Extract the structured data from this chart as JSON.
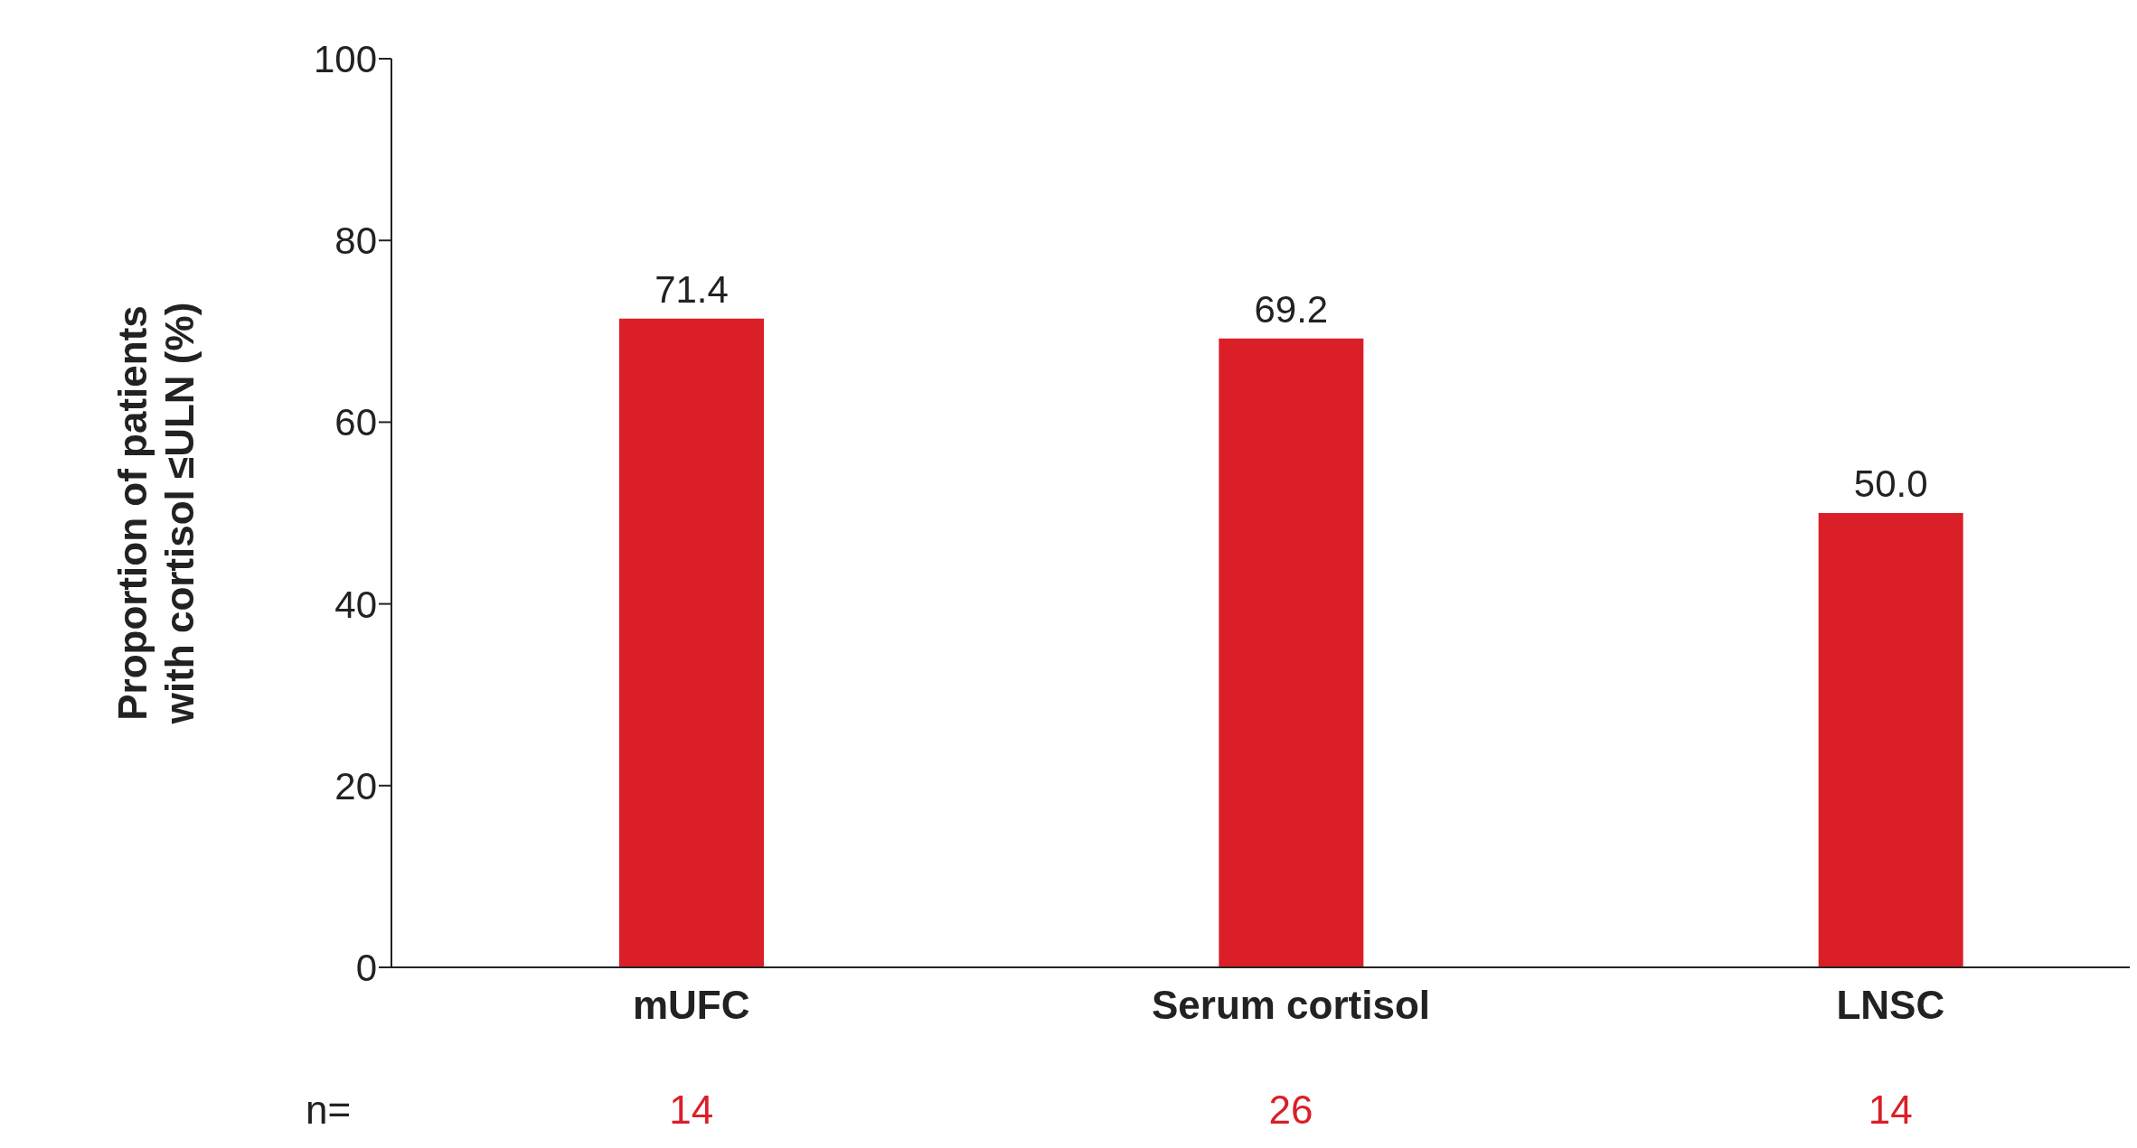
{
  "chart_data": {
    "type": "bar",
    "ylabel": "Proportion of patients\nwith cortisol ≤ULN (%)",
    "categories": [
      "mUFC",
      "Serum cortisol",
      "LNSC"
    ],
    "values": [
      71.4,
      69.2,
      50.0
    ],
    "value_labels": [
      "71.4",
      "69.2",
      "50.0"
    ],
    "color": "#da1f28",
    "ylim": [
      0,
      100
    ],
    "yticks": [
      0,
      20,
      40,
      60,
      80,
      100
    ],
    "grid": false,
    "legend": false,
    "annotations": [
      "n=",
      "14",
      "26",
      "14"
    ]
  }
}
